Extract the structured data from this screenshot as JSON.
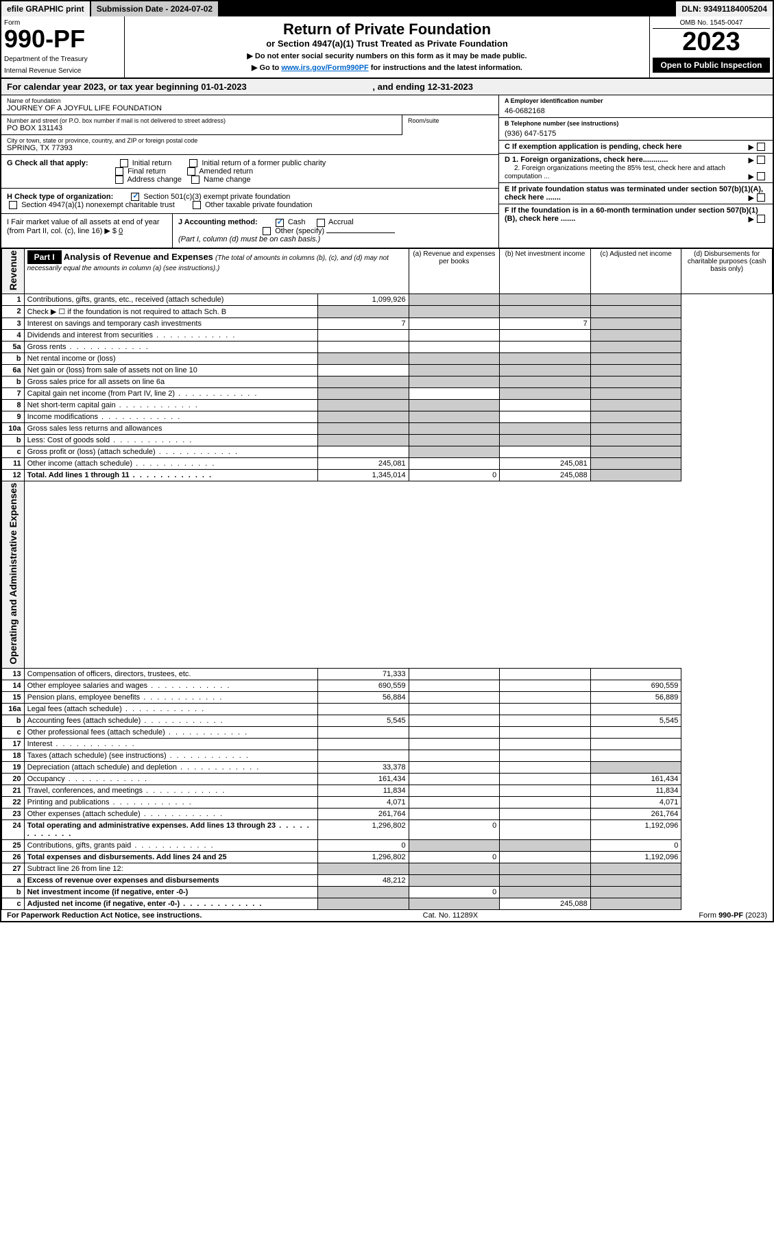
{
  "topbar": {
    "efile": "efile GRAPHIC print",
    "submission_label": "Submission Date - ",
    "submission_date": "2024-07-02",
    "dln_label": "DLN: ",
    "dln": "93491184005204"
  },
  "header": {
    "form_label": "Form",
    "form_number": "990-PF",
    "dept1": "Department of the Treasury",
    "dept2": "Internal Revenue Service",
    "title": "Return of Private Foundation",
    "subtitle": "or Section 4947(a)(1) Trust Treated as Private Foundation",
    "note1": "▶ Do not enter social security numbers on this form as it may be made public.",
    "note2_prefix": "▶ Go to ",
    "note2_link": "www.irs.gov/Form990PF",
    "note2_suffix": " for instructions and the latest information.",
    "omb": "OMB No. 1545-0047",
    "year": "2023",
    "inspect": "Open to Public Inspection"
  },
  "calendar": {
    "text": "For calendar year 2023, or tax year beginning 01-01-2023",
    "ending": ", and ending 12-31-2023"
  },
  "entity": {
    "name_label": "Name of foundation",
    "name": "JOURNEY OF A JOYFUL LIFE FOUNDATION",
    "address_label": "Number and street (or P.O. box number if mail is not delivered to street address)",
    "address": "PO BOX 131143",
    "room_label": "Room/suite",
    "city_label": "City or town, state or province, country, and ZIP or foreign postal code",
    "city": "SPRING, TX  77393",
    "ein_label": "A Employer identification number",
    "ein": "46-0682168",
    "phone_label": "B Telephone number (see instructions)",
    "phone": "(936) 647-5175",
    "C": "C If exemption application is pending, check here",
    "D1": "D 1. Foreign organizations, check here............",
    "D2": "2. Foreign organizations meeting the 85% test, check here and attach computation ...",
    "E": "E  If private foundation status was terminated under section 507(b)(1)(A), check here .......",
    "F": "F  If the foundation is in a 60-month termination under section 507(b)(1)(B), check here .......",
    "G_label": "G Check all that apply:",
    "G_opts": [
      "Initial return",
      "Initial return of a former public charity",
      "Final return",
      "Amended return",
      "Address change",
      "Name change"
    ],
    "H_label": "H Check type of organization:",
    "H_opt1": "Section 501(c)(3) exempt private foundation",
    "H_opt2": "Section 4947(a)(1) nonexempt charitable trust",
    "H_opt3": "Other taxable private foundation",
    "I_label": "I Fair market value of all assets at end of year (from Part II, col. (c), line 16) ▶ $",
    "I_value": "0",
    "J_label": "J Accounting method:",
    "J_cash": "Cash",
    "J_accrual": "Accrual",
    "J_other": "Other (specify)",
    "J_note": "(Part I, column (d) must be on cash basis.)"
  },
  "part1": {
    "header": "Part I",
    "title": "Analysis of Revenue and Expenses",
    "desc": "(The total of amounts in columns (b), (c), and (d) may not necessarily equal the amounts in column (a) (see instructions).)",
    "col_a": "(a) Revenue and expenses per books",
    "col_b": "(b) Net investment income",
    "col_c": "(c) Adjusted net income",
    "col_d": "(d) Disbursements for charitable purposes (cash basis only)",
    "side_revenue": "Revenue",
    "side_expenses": "Operating and Administrative Expenses"
  },
  "rows": [
    {
      "n": "1",
      "desc": "Contributions, gifts, grants, etc., received (attach schedule)",
      "a": "1,099,926",
      "b": "",
      "c": "",
      "d": "",
      "shade_b": true,
      "shade_c": true,
      "shade_d": true
    },
    {
      "n": "2",
      "desc": "Check ▶ ☐ if the foundation is not required to attach Sch. B",
      "a": "",
      "b": "",
      "c": "",
      "d": "",
      "shade_all": true,
      "italic_not": true
    },
    {
      "n": "3",
      "desc": "Interest on savings and temporary cash investments",
      "a": "7",
      "b": "",
      "c": "7",
      "d": "",
      "shade_d": true
    },
    {
      "n": "4",
      "desc": "Dividends and interest from securities",
      "a": "",
      "b": "",
      "c": "",
      "d": "",
      "shade_d": true,
      "dots": true
    },
    {
      "n": "5a",
      "desc": "Gross rents",
      "a": "",
      "b": "",
      "c": "",
      "d": "",
      "shade_d": true,
      "dots": true
    },
    {
      "n": "b",
      "desc": "Net rental income or (loss)",
      "a": "",
      "b": "",
      "c": "",
      "d": "",
      "shade_all": true,
      "underline": true
    },
    {
      "n": "6a",
      "desc": "Net gain or (loss) from sale of assets not on line 10",
      "a": "",
      "b": "",
      "c": "",
      "d": "",
      "shade_b": true,
      "shade_c": true,
      "shade_d": true
    },
    {
      "n": "b",
      "desc": "Gross sales price for all assets on line 6a",
      "a": "",
      "b": "",
      "c": "",
      "d": "",
      "shade_all": true,
      "underline": true
    },
    {
      "n": "7",
      "desc": "Capital gain net income (from Part IV, line 2)",
      "a": "",
      "b": "",
      "c": "",
      "d": "",
      "shade_a": true,
      "shade_c": true,
      "shade_d": true,
      "dots": true
    },
    {
      "n": "8",
      "desc": "Net short-term capital gain",
      "a": "",
      "b": "",
      "c": "",
      "d": "",
      "shade_a": true,
      "shade_b": true,
      "shade_d": true,
      "dots": true
    },
    {
      "n": "9",
      "desc": "Income modifications",
      "a": "",
      "b": "",
      "c": "",
      "d": "",
      "shade_a": true,
      "shade_b": true,
      "shade_d": true,
      "dots": true
    },
    {
      "n": "10a",
      "desc": "Gross sales less returns and allowances",
      "a": "",
      "b": "",
      "c": "",
      "d": "",
      "shade_all": true,
      "underline": true
    },
    {
      "n": "b",
      "desc": "Less: Cost of goods sold",
      "a": "",
      "b": "",
      "c": "",
      "d": "",
      "shade_all": true,
      "underline": true,
      "dots": true
    },
    {
      "n": "c",
      "desc": "Gross profit or (loss) (attach schedule)",
      "a": "",
      "b": "",
      "c": "",
      "d": "",
      "shade_b": true,
      "shade_d": true,
      "dots": true
    },
    {
      "n": "11",
      "desc": "Other income (attach schedule)",
      "a": "245,081",
      "b": "",
      "c": "245,081",
      "d": "",
      "shade_d": true,
      "dots": true
    },
    {
      "n": "12",
      "desc": "Total. Add lines 1 through 11",
      "a": "1,345,014",
      "b": "0",
      "c": "245,088",
      "d": "",
      "shade_d": true,
      "bold": true,
      "dots": true
    },
    {
      "n": "13",
      "desc": "Compensation of officers, directors, trustees, etc.",
      "a": "71,333",
      "b": "",
      "c": "",
      "d": ""
    },
    {
      "n": "14",
      "desc": "Other employee salaries and wages",
      "a": "690,559",
      "b": "",
      "c": "",
      "d": "690,559",
      "dots": true
    },
    {
      "n": "15",
      "desc": "Pension plans, employee benefits",
      "a": "56,884",
      "b": "",
      "c": "",
      "d": "56,889",
      "dots": true
    },
    {
      "n": "16a",
      "desc": "Legal fees (attach schedule)",
      "a": "",
      "b": "",
      "c": "",
      "d": "",
      "dots": true
    },
    {
      "n": "b",
      "desc": "Accounting fees (attach schedule)",
      "a": "5,545",
      "b": "",
      "c": "",
      "d": "5,545",
      "dots": true
    },
    {
      "n": "c",
      "desc": "Other professional fees (attach schedule)",
      "a": "",
      "b": "",
      "c": "",
      "d": "",
      "dots": true
    },
    {
      "n": "17",
      "desc": "Interest",
      "a": "",
      "b": "",
      "c": "",
      "d": "",
      "dots": true
    },
    {
      "n": "18",
      "desc": "Taxes (attach schedule) (see instructions)",
      "a": "",
      "b": "",
      "c": "",
      "d": "",
      "dots": true
    },
    {
      "n": "19",
      "desc": "Depreciation (attach schedule) and depletion",
      "a": "33,378",
      "b": "",
      "c": "",
      "d": "",
      "shade_d": true,
      "dots": true
    },
    {
      "n": "20",
      "desc": "Occupancy",
      "a": "161,434",
      "b": "",
      "c": "",
      "d": "161,434",
      "dots": true
    },
    {
      "n": "21",
      "desc": "Travel, conferences, and meetings",
      "a": "11,834",
      "b": "",
      "c": "",
      "d": "11,834",
      "dots": true
    },
    {
      "n": "22",
      "desc": "Printing and publications",
      "a": "4,071",
      "b": "",
      "c": "",
      "d": "4,071",
      "dots": true
    },
    {
      "n": "23",
      "desc": "Other expenses (attach schedule)",
      "a": "261,764",
      "b": "",
      "c": "",
      "d": "261,764",
      "dots": true
    },
    {
      "n": "24",
      "desc": "Total operating and administrative expenses. Add lines 13 through 23",
      "a": "1,296,802",
      "b": "0",
      "c": "",
      "d": "1,192,096",
      "bold": true,
      "dots": true
    },
    {
      "n": "25",
      "desc": "Contributions, gifts, grants paid",
      "a": "0",
      "b": "",
      "c": "",
      "d": "0",
      "shade_b": true,
      "shade_c": true,
      "dots": true
    },
    {
      "n": "26",
      "desc": "Total expenses and disbursements. Add lines 24 and 25",
      "a": "1,296,802",
      "b": "0",
      "c": "",
      "d": "1,192,096",
      "bold": true
    },
    {
      "n": "27",
      "desc": "Subtract line 26 from line 12:",
      "a": "",
      "b": "",
      "c": "",
      "d": "",
      "shade_all": true
    },
    {
      "n": "a",
      "desc": "Excess of revenue over expenses and disbursements",
      "a": "48,212",
      "b": "",
      "c": "",
      "d": "",
      "shade_b": true,
      "shade_c": true,
      "shade_d": true,
      "bold": true
    },
    {
      "n": "b",
      "desc": "Net investment income (if negative, enter -0-)",
      "a": "",
      "b": "0",
      "c": "",
      "d": "",
      "shade_a": true,
      "shade_c": true,
      "shade_d": true,
      "bold": true
    },
    {
      "n": "c",
      "desc": "Adjusted net income (if negative, enter -0-)",
      "a": "",
      "b": "",
      "c": "245,088",
      "d": "",
      "shade_a": true,
      "shade_b": true,
      "shade_d": true,
      "bold": true,
      "dots": true
    }
  ],
  "footer": {
    "left": "For Paperwork Reduction Act Notice, see instructions.",
    "center": "Cat. No. 11289X",
    "right": "Form 990-PF (2023)"
  }
}
